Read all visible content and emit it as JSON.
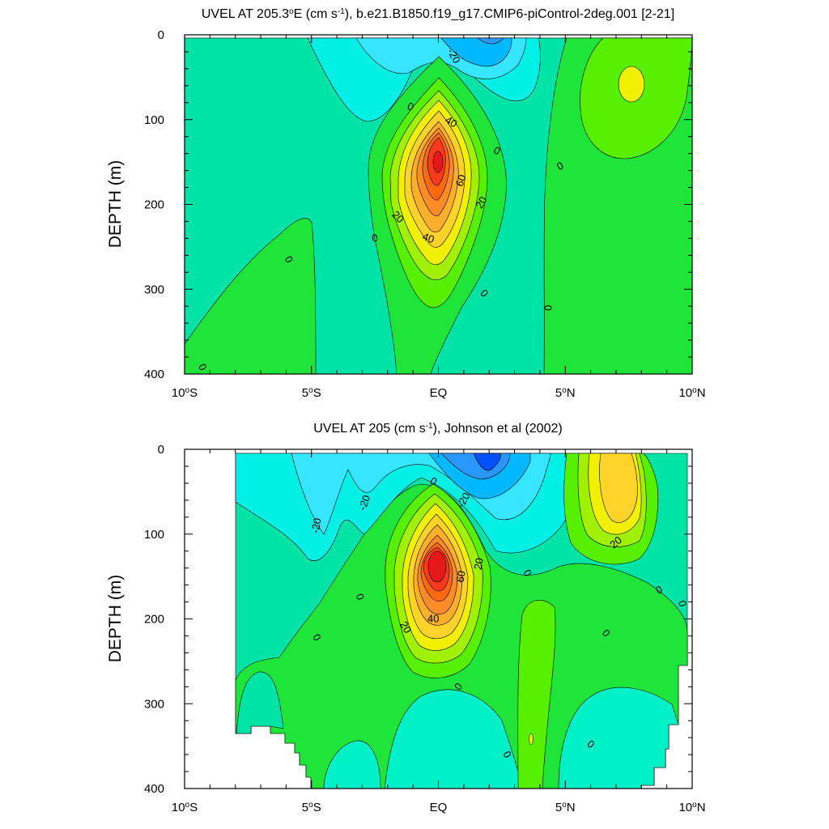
{
  "chart_data": [
    {
      "type": "contour",
      "title": "UVEL AT 205.3°E (cm s-1), b.e21.B1850.f19_g17.CMIP6-piControl-2deg.001 [2-21]",
      "title_parts": {
        "a": "UVEL AT 205.3",
        "deg": "o",
        "b": "E (cm s",
        "sup": "-1",
        "c": "), b.e21.B1850.f19_g17.CMIP6-piControl-2deg.001 [2-21]"
      },
      "ylabel": "DEPTH (m)",
      "xlabel": "",
      "xlim": [
        -10,
        10
      ],
      "ylim": [
        0,
        400
      ],
      "y_inverted": true,
      "x_ticks": [
        {
          "value": -10,
          "num": "10",
          "hem": "S"
        },
        {
          "value": -5,
          "num": "5",
          "hem": "S"
        },
        {
          "value": 0,
          "num": "",
          "hem": "EQ"
        },
        {
          "value": 5,
          "num": "5",
          "hem": "N"
        },
        {
          "value": 10,
          "num": "10",
          "hem": "N"
        }
      ],
      "y_ticks": [
        0,
        100,
        200,
        300,
        400
      ],
      "contour_interval": 10,
      "data_extent": {
        "lat": [
          -10,
          10
        ],
        "depth": [
          5,
          400
        ]
      },
      "contour_labels": [
        {
          "text": "-20",
          "lat": 0.6,
          "depth": 25,
          "rot": 60
        },
        {
          "text": "0",
          "lat": -1.1,
          "depth": 85,
          "rot": 20
        },
        {
          "text": "40",
          "lat": 0.5,
          "depth": 103,
          "rot": 30
        },
        {
          "text": "0",
          "lat": 2.3,
          "depth": 137,
          "rot": 30
        },
        {
          "text": "0",
          "lat": 4.8,
          "depth": 155,
          "rot": -30
        },
        {
          "text": "60",
          "lat": 0.9,
          "depth": 172,
          "rot": -70
        },
        {
          "text": "20",
          "lat": 1.7,
          "depth": 198,
          "rot": -60
        },
        {
          "text": "20",
          "lat": -1.6,
          "depth": 215,
          "rot": 45
        },
        {
          "text": "40",
          "lat": -0.4,
          "depth": 240,
          "rot": 20
        },
        {
          "text": "0",
          "lat": -2.5,
          "depth": 240,
          "rot": -10
        },
        {
          "text": "0",
          "lat": -5.9,
          "depth": 265,
          "rot": 60
        },
        {
          "text": "0",
          "lat": 1.8,
          "depth": 305,
          "rot": 50
        },
        {
          "text": "0",
          "lat": 4.3,
          "depth": 322,
          "rot": 90
        },
        {
          "text": "0",
          "lat": -9.3,
          "depth": 392,
          "rot": 60
        }
      ]
    },
    {
      "type": "contour",
      "title": "UVEL AT 205 (cm s-1), Johnson et al (2002)",
      "title_parts": {
        "a": "UVEL AT 205",
        "deg": "",
        "b": " (cm s",
        "sup": "-1",
        "c": "), Johnson et al (2002)"
      },
      "ylabel": "DEPTH (m)",
      "xlabel": "",
      "xlim": [
        -10,
        10
      ],
      "ylim": [
        0,
        400
      ],
      "y_inverted": true,
      "x_ticks": [
        {
          "value": -10,
          "num": "10",
          "hem": "S"
        },
        {
          "value": -5,
          "num": "5",
          "hem": "S"
        },
        {
          "value": 0,
          "num": "",
          "hem": "EQ"
        },
        {
          "value": 5,
          "num": "5",
          "hem": "N"
        },
        {
          "value": 10,
          "num": "10",
          "hem": "N"
        }
      ],
      "y_ticks": [
        0,
        100,
        200,
        300,
        400
      ],
      "contour_interval": 10,
      "data_extent": {
        "lat": [
          -8,
          9.8
        ],
        "depth": [
          5,
          400
        ]
      },
      "contour_labels": [
        {
          "text": "0",
          "lat": -0.2,
          "depth": 38,
          "rot": 30
        },
        {
          "text": "-20",
          "lat": 1.0,
          "depth": 60,
          "rot": -60
        },
        {
          "text": "-20",
          "lat": -2.9,
          "depth": 63,
          "rot": -70
        },
        {
          "text": "-20",
          "lat": -4.8,
          "depth": 90,
          "rot": -80
        },
        {
          "text": "20",
          "lat": 7.0,
          "depth": 110,
          "rot": -40
        },
        {
          "text": "20",
          "lat": 1.6,
          "depth": 135,
          "rot": -80
        },
        {
          "text": "60",
          "lat": 0.9,
          "depth": 150,
          "rot": -80
        },
        {
          "text": "0",
          "lat": 3.5,
          "depth": 146,
          "rot": 60
        },
        {
          "text": "0",
          "lat": 8.7,
          "depth": 166,
          "rot": -30
        },
        {
          "text": "0",
          "lat": -3.1,
          "depth": 174,
          "rot": 70
        },
        {
          "text": "0",
          "lat": 9.6,
          "depth": 182,
          "rot": 70
        },
        {
          "text": "20",
          "lat": -1.3,
          "depth": 210,
          "rot": 60
        },
        {
          "text": "40",
          "lat": -0.2,
          "depth": 200,
          "rot": 0
        },
        {
          "text": "0",
          "lat": -4.8,
          "depth": 222,
          "rot": 60
        },
        {
          "text": "0",
          "lat": 6.6,
          "depth": 217,
          "rot": 50
        },
        {
          "text": "0",
          "lat": 0.8,
          "depth": 280,
          "rot": -50
        },
        {
          "text": "0",
          "lat": 2.7,
          "depth": 360,
          "rot": 60
        },
        {
          "text": "0",
          "lat": 6.0,
          "depth": 348,
          "rot": 40
        }
      ]
    }
  ]
}
